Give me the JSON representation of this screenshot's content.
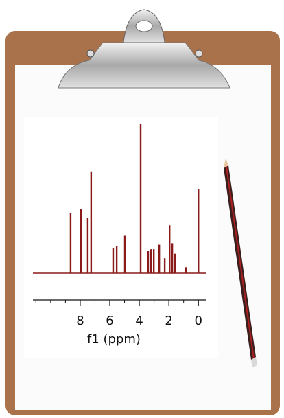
{
  "chart_data": {
    "type": "stem",
    "xlabel": "f1 (ppm)",
    "x": [
      8.65,
      7.95,
      7.49,
      7.26,
      5.77,
      5.53,
      4.98,
      3.91,
      3.4,
      3.21,
      3.02,
      2.65,
      2.28,
      1.95,
      1.77,
      1.58,
      0.84,
      0.0
    ],
    "values": [
      40,
      43,
      37,
      68,
      17,
      18,
      25,
      100,
      15,
      16,
      16,
      19,
      10,
      32,
      20,
      13,
      4,
      56
    ],
    "color": "#8b1a1a",
    "xlim": [
      11.2,
      -0.5
    ],
    "ylim": [
      0,
      100
    ],
    "xticks": [
      8,
      6,
      4,
      2,
      0
    ],
    "minor_xticks": [
      11,
      10,
      9,
      7,
      5,
      3,
      1
    ]
  }
}
